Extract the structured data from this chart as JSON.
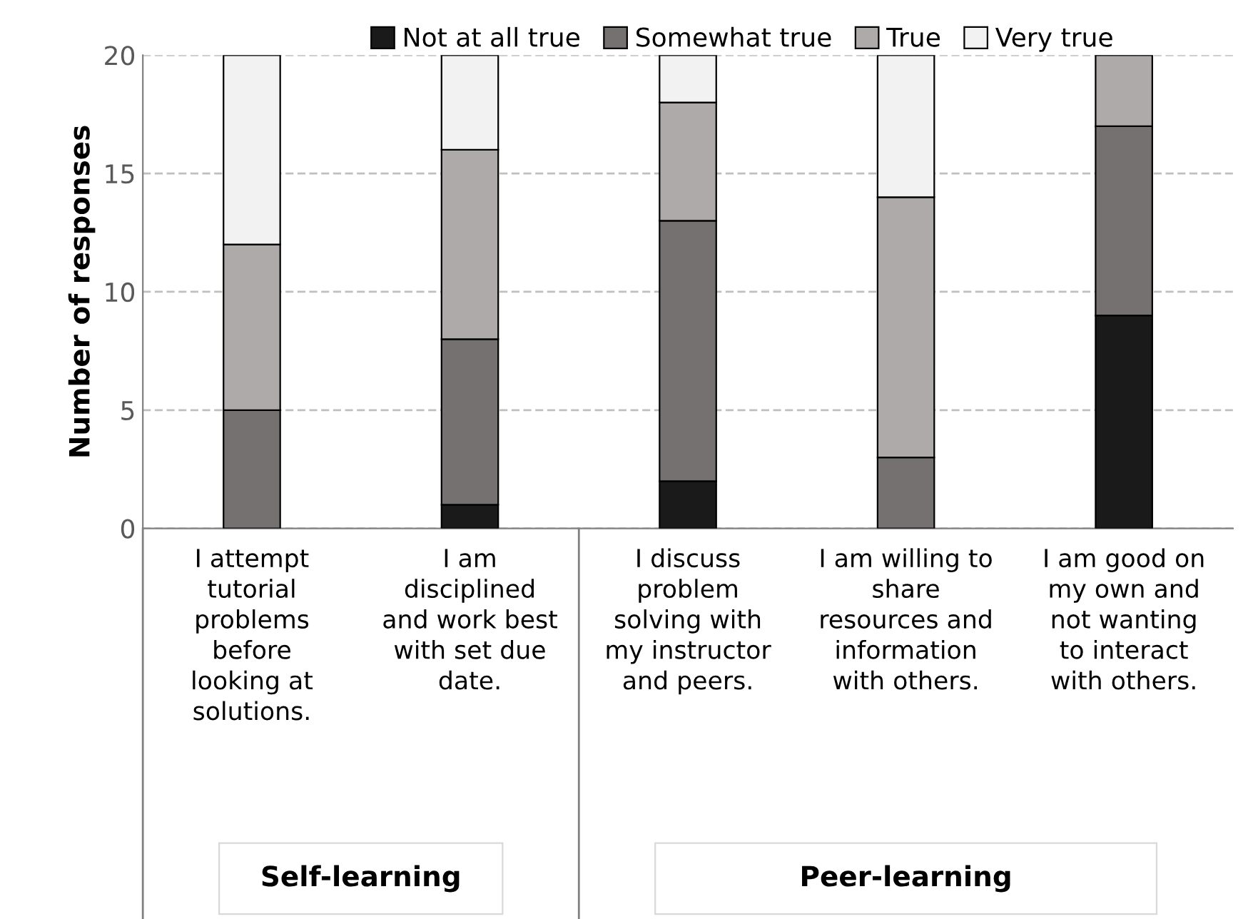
{
  "chart_data": {
    "type": "bar",
    "stacked": true,
    "ylabel": "Number of responses",
    "categories": [
      "I attempt\ntutorial\nproblems\nbefore\nlooking at\nsolutions.",
      "I am\ndisciplined\nand work best\nwith set due\ndate.",
      "I discuss\nproblem\nsolving with\nmy instructor\nand peers.",
      "I am willing to\nshare\nresources and\ninformation\nwith others.",
      "I am good on\nmy own and\nnot wanting\nto interact\nwith others."
    ],
    "series": [
      {
        "name": "Not at all true",
        "color": "#1a1a1a",
        "values": [
          0,
          1,
          2,
          0,
          9
        ]
      },
      {
        "name": "Somewhat true",
        "color": "#767171",
        "values": [
          5,
          7,
          11,
          3,
          8
        ]
      },
      {
        "name": "True",
        "color": "#aeaaaa",
        "values": [
          7,
          8,
          5,
          11,
          3
        ]
      },
      {
        "name": "Very true",
        "color": "#f2f2f2",
        "values": [
          8,
          4,
          2,
          6,
          0
        ]
      }
    ],
    "ylim": [
      0,
      20
    ],
    "yticks": [
      0,
      5,
      10,
      15,
      20
    ],
    "grid": "y",
    "legend": "top",
    "annotations": [
      "Self-learning",
      "Peer-learning"
    ]
  }
}
